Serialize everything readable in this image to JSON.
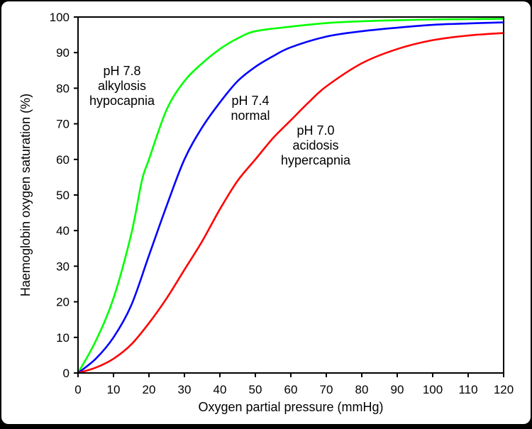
{
  "chart_data": {
    "type": "line",
    "title": "",
    "xlabel": "Oxygen partial pressure (mmHg)",
    "ylabel": "Haemoglobin oxygen saturation (%)",
    "xlim": [
      0,
      120
    ],
    "ylim": [
      0,
      100
    ],
    "x_ticks": [
      0,
      10,
      20,
      30,
      40,
      50,
      60,
      70,
      80,
      90,
      100,
      110,
      120
    ],
    "y_ticks": [
      0,
      10,
      20,
      30,
      40,
      50,
      60,
      70,
      80,
      90,
      100
    ],
    "grid": false,
    "legend": "none",
    "series": [
      {
        "name": "pH 7.8 alkylosis hypocapnia",
        "color": "#00ff00",
        "annotation": [
          "pH 7.8",
          "alkylosis",
          "hypocapnia"
        ],
        "x": [
          0,
          5,
          10,
          15,
          18,
          20,
          25,
          30,
          35,
          40,
          45,
          50,
          60,
          70,
          80,
          90,
          100,
          110,
          120
        ],
        "y": [
          0,
          9,
          21,
          39,
          54,
          60,
          74,
          82,
          87,
          91,
          94,
          96,
          97.3,
          98.3,
          98.8,
          99.1,
          99.3,
          99.4,
          99.5
        ]
      },
      {
        "name": "pH 7.4 normal",
        "color": "#0000ff",
        "annotation": [
          "pH 7.4",
          "normal"
        ],
        "x": [
          0,
          5,
          10,
          15,
          20,
          25,
          30,
          35,
          40,
          45,
          50,
          55,
          60,
          70,
          80,
          90,
          100,
          110,
          120
        ],
        "y": [
          0,
          4,
          10,
          19,
          33,
          47,
          60,
          69,
          76,
          82,
          86,
          89,
          91.5,
          94.5,
          96,
          97,
          97.8,
          98.2,
          98.5
        ]
      },
      {
        "name": "pH 7.0 acidosis hypercapnia",
        "color": "#ff0000",
        "annotation": [
          "pH 7.0",
          "acidosis",
          "hypercapnia"
        ],
        "x": [
          0,
          5,
          10,
          15,
          20,
          25,
          30,
          35,
          40,
          45,
          50,
          55,
          60,
          65,
          70,
          80,
          90,
          100,
          110,
          120
        ],
        "y": [
          0,
          1.5,
          4,
          8,
          14,
          21,
          29,
          37,
          46,
          54,
          60,
          66,
          71,
          76,
          80.5,
          87,
          91,
          93.5,
          94.8,
          95.5
        ]
      }
    ]
  }
}
